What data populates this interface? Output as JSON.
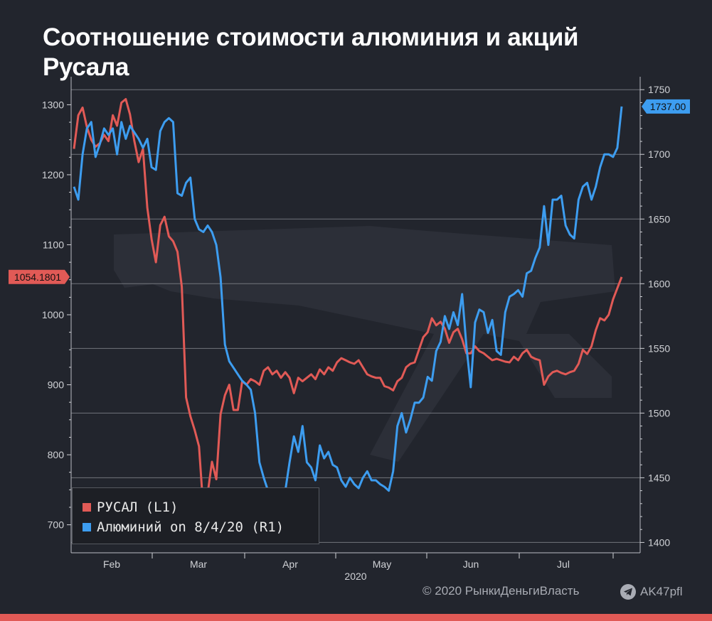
{
  "title": "Соотношение стоимости алюминия и акций Русала",
  "footer": {
    "credit": "© 2020  РынкиДеньгиВласть",
    "handle": "AK47pfl",
    "handle_icon": "telegram-icon"
  },
  "colors": {
    "background": "#22252d",
    "rusal": "#e15a56",
    "aluminium": "#3d9df0",
    "accent_bar": "#e15a56"
  },
  "chart_data": {
    "type": "line",
    "x_ticks": [
      "Feb",
      "Mar",
      "Apr",
      "May",
      "Jun",
      "Jul"
    ],
    "x_year_label": "2020",
    "y_left": {
      "ticks": [
        700,
        800,
        900,
        1000,
        1100,
        1200,
        1300
      ],
      "range": [
        660,
        1340
      ]
    },
    "y_right": {
      "ticks": [
        1400,
        1450,
        1500,
        1550,
        1600,
        1650,
        1700,
        1750
      ],
      "range": [
        1392,
        1760
      ]
    },
    "grid": true,
    "legend_position": "bottom-left",
    "last_value_labels": {
      "left": "1054.1801",
      "right": "1737.00"
    },
    "series": [
      {
        "name": "РУСАЛ (L1)",
        "axis": "left",
        "color": "#e15a56",
        "values": [
          1237,
          1285,
          1296,
          1268,
          1250,
          1240,
          1245,
          1257,
          1248,
          1285,
          1270,
          1303,
          1308,
          1286,
          1248,
          1218,
          1237,
          1153,
          1108,
          1075,
          1128,
          1140,
          1112,
          1105,
          1090,
          1040,
          882,
          855,
          835,
          812,
          722,
          745,
          790,
          765,
          858,
          885,
          900,
          864,
          864,
          905,
          900,
          908,
          905,
          900,
          920,
          925,
          915,
          920,
          910,
          918,
          910,
          888,
          910,
          905,
          910,
          915,
          908,
          922,
          915,
          925,
          920,
          932,
          938,
          935,
          932,
          930,
          935,
          925,
          915,
          912,
          910,
          910,
          898,
          896,
          892,
          905,
          910,
          925,
          930,
          932,
          950,
          968,
          975,
          995,
          985,
          990,
          980,
          960,
          975,
          980,
          965,
          945,
          945,
          955,
          948,
          945,
          940,
          935,
          937,
          935,
          933,
          932,
          940,
          935,
          945,
          950,
          940,
          937,
          935,
          900,
          912,
          918,
          920,
          917,
          915,
          918,
          920,
          930,
          950,
          944,
          955,
          978,
          995,
          992,
          1000,
          1022,
          1038,
          1054
        ]
      },
      {
        "name": "Алюминий on 8/4/20 (R1)",
        "axis": "right",
        "color": "#3d9df0",
        "values": [
          1675,
          1665,
          1700,
          1720,
          1725,
          1698,
          1708,
          1720,
          1715,
          1720,
          1700,
          1725,
          1712,
          1722,
          1717,
          1712,
          1705,
          1712,
          1690,
          1688,
          1718,
          1725,
          1728,
          1725,
          1670,
          1668,
          1678,
          1682,
          1650,
          1642,
          1640,
          1645,
          1640,
          1630,
          1605,
          1553,
          1540,
          1535,
          1530,
          1525,
          1522,
          1518,
          1500,
          1462,
          1450,
          1440,
          1430,
          1420,
          1410,
          1440,
          1462,
          1482,
          1470,
          1490,
          1462,
          1458,
          1448,
          1475,
          1465,
          1470,
          1460,
          1458,
          1448,
          1443,
          1450,
          1445,
          1442,
          1450,
          1455,
          1448,
          1448,
          1445,
          1443,
          1440,
          1455,
          1490,
          1500,
          1485,
          1495,
          1508,
          1508,
          1512,
          1528,
          1525,
          1548,
          1555,
          1575,
          1565,
          1578,
          1568,
          1592,
          1552,
          1520,
          1570,
          1580,
          1578,
          1562,
          1572,
          1548,
          1545,
          1578,
          1590,
          1592,
          1595,
          1590,
          1608,
          1610,
          1620,
          1628,
          1660,
          1630,
          1665,
          1665,
          1668,
          1645,
          1638,
          1635,
          1665,
          1675,
          1678,
          1665,
          1675,
          1690,
          1700,
          1700,
          1698,
          1705,
          1737
        ]
      }
    ]
  }
}
